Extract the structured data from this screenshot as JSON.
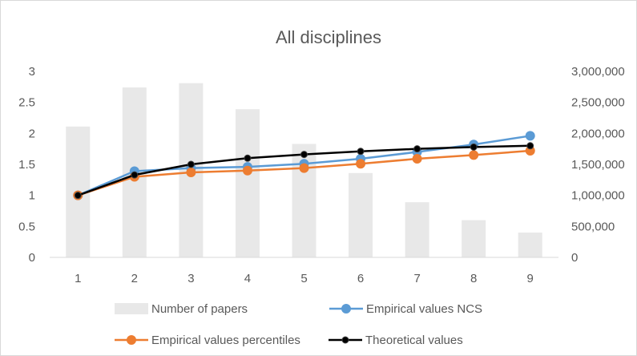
{
  "chart_data": {
    "type": "bar",
    "title": "All disciplines",
    "xlabel": "",
    "ylabel": "",
    "categories": [
      "1",
      "2",
      "3",
      "4",
      "5",
      "6",
      "7",
      "8",
      "9"
    ],
    "y_left": {
      "lim": [
        0,
        3
      ],
      "ticks": [
        "0",
        "0.5",
        "1",
        "1.5",
        "2",
        "2.5",
        "3"
      ]
    },
    "y_right": {
      "lim": [
        0,
        3000000
      ],
      "ticks": [
        "0",
        "500,000",
        "1,000,000",
        "1,500,000",
        "2,000,000",
        "2,500,000",
        "3,000,000"
      ]
    },
    "grid": false,
    "legend_position": "bottom",
    "series": [
      {
        "name": "Number of papers",
        "type": "bar",
        "axis": "right",
        "color": "#e8e8e8",
        "values": [
          2110000,
          2740000,
          2810000,
          2390000,
          1830000,
          1360000,
          890000,
          600000,
          400000
        ]
      },
      {
        "name": "Empirical values NCS",
        "type": "line",
        "axis": "left",
        "color": "#5b9bd5",
        "values": [
          1.0,
          1.39,
          1.44,
          1.46,
          1.51,
          1.59,
          1.7,
          1.82,
          1.96
        ]
      },
      {
        "name": "Empirical values percentiles",
        "type": "line",
        "axis": "left",
        "color": "#ed7d31",
        "values": [
          1.0,
          1.3,
          1.37,
          1.4,
          1.44,
          1.51,
          1.59,
          1.65,
          1.72
        ]
      },
      {
        "name": "Theoretical values",
        "type": "line",
        "axis": "left",
        "color": "#000000",
        "values": [
          1.0,
          1.33,
          1.5,
          1.6,
          1.66,
          1.71,
          1.75,
          1.78,
          1.8
        ]
      }
    ]
  }
}
